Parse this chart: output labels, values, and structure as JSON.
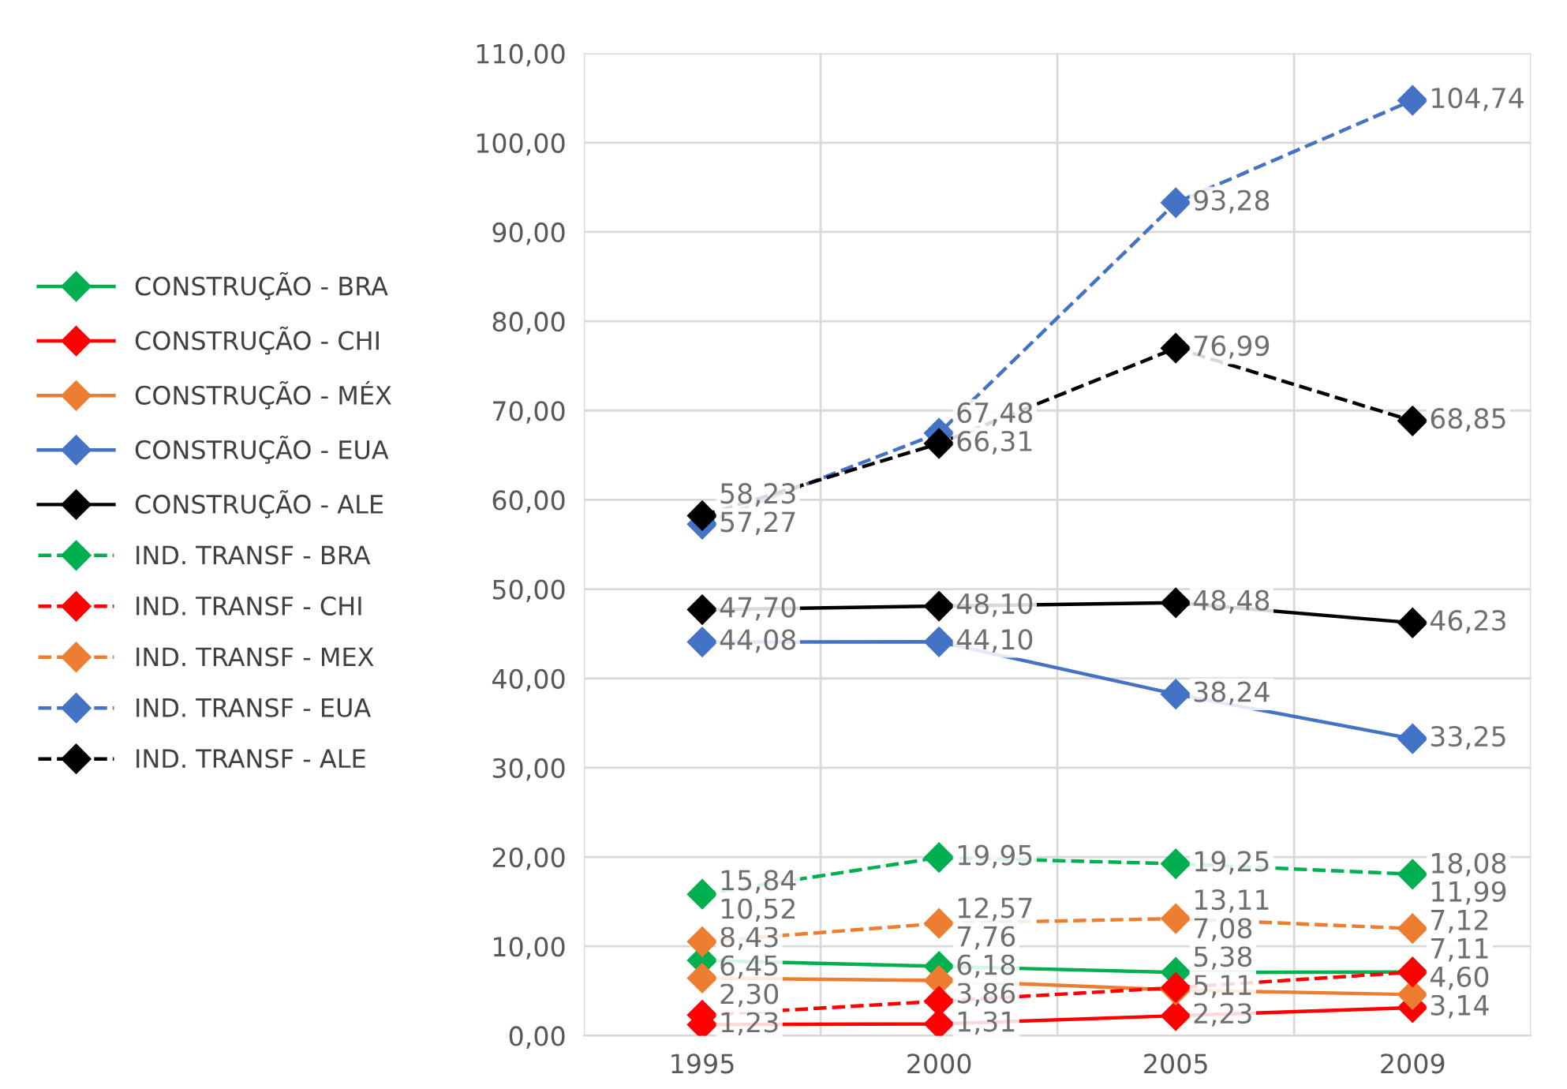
{
  "chart_data": {
    "type": "line",
    "categories": [
      "1995",
      "2000",
      "2005",
      "2009"
    ],
    "series": [
      {
        "name": "CONSTRUÇÃO - BRA",
        "color": "#00b050",
        "line_style": "solid",
        "values": [
          8.43,
          7.76,
          7.08,
          7.12
        ],
        "value_labels": [
          "8,43",
          "7,76",
          "7,08",
          "7,12"
        ]
      },
      {
        "name": "CONSTRUÇÃO - CHI",
        "color": "#ff0000",
        "line_style": "solid",
        "values": [
          1.23,
          1.31,
          2.23,
          3.14
        ],
        "value_labels": [
          "1,23",
          "1,31",
          "2,23",
          "3,14"
        ]
      },
      {
        "name": "CONSTRUÇÃO - MÉX",
        "color": "#ed7d31",
        "line_style": "solid",
        "values": [
          6.45,
          6.18,
          5.11,
          4.6
        ],
        "value_labels": [
          "6,45",
          "6,18",
          "5,11",
          "4,60"
        ]
      },
      {
        "name": "CONSTRUÇÃO - EUA",
        "color": "#4472c4",
        "line_style": "solid",
        "values": [
          44.08,
          44.1,
          38.24,
          33.25
        ],
        "value_labels": [
          "44,08",
          "44,10",
          "38,24",
          "33,25"
        ]
      },
      {
        "name": "CONSTRUÇÃO - ALE",
        "color": "#000000",
        "line_style": "solid",
        "values": [
          47.7,
          48.1,
          48.48,
          46.23
        ],
        "value_labels": [
          "47,70",
          "48,10",
          "48,48",
          "46,23"
        ]
      },
      {
        "name": "IND. TRANSF - BRA",
        "color": "#00b050",
        "line_style": "dashed",
        "values": [
          15.84,
          19.95,
          19.25,
          18.08
        ],
        "value_labels": [
          "15,84",
          "19,95",
          "19,25",
          "18,08"
        ]
      },
      {
        "name": "IND. TRANSF - CHI",
        "color": "#ff0000",
        "line_style": "dashed",
        "values": [
          2.3,
          3.86,
          5.38,
          7.11
        ],
        "value_labels": [
          "2,30",
          "3,86",
          "5,38",
          "7,11"
        ]
      },
      {
        "name": "IND. TRANSF - MEX",
        "color": "#ed7d31",
        "line_style": "dashed",
        "values": [
          10.52,
          12.57,
          13.11,
          11.99
        ],
        "value_labels": [
          "10,52",
          "12,57",
          "13,11",
          "11,99"
        ]
      },
      {
        "name": "IND. TRANSF - EUA",
        "color": "#4472c4",
        "line_style": "dashed",
        "values": [
          57.27,
          67.48,
          93.28,
          104.74
        ],
        "value_labels": [
          "57,27",
          "67,48",
          "93,28",
          "104,74"
        ]
      },
      {
        "name": "IND. TRANSF - ALE",
        "color": "#000000",
        "line_style": "dashed",
        "values": [
          58.23,
          66.31,
          76.99,
          68.85
        ],
        "value_labels": [
          "58,23",
          "66,31",
          "76,99",
          "68,85"
        ]
      }
    ],
    "ylim": [
      0,
      110
    ],
    "yticks": [
      {
        "value": 0,
        "label": "0,00"
      },
      {
        "value": 10,
        "label": "10,00"
      },
      {
        "value": 20,
        "label": "20,00"
      },
      {
        "value": 30,
        "label": "30,00"
      },
      {
        "value": 40,
        "label": "40,00"
      },
      {
        "value": 50,
        "label": "50,00"
      },
      {
        "value": 60,
        "label": "60,00"
      },
      {
        "value": 70,
        "label": "70,00"
      },
      {
        "value": 80,
        "label": "80,00"
      },
      {
        "value": 90,
        "label": "90,00"
      },
      {
        "value": 100,
        "label": "100,00"
      },
      {
        "value": 110,
        "label": "110,00"
      }
    ],
    "grid": true,
    "legend": "left",
    "marker": "diamond"
  }
}
